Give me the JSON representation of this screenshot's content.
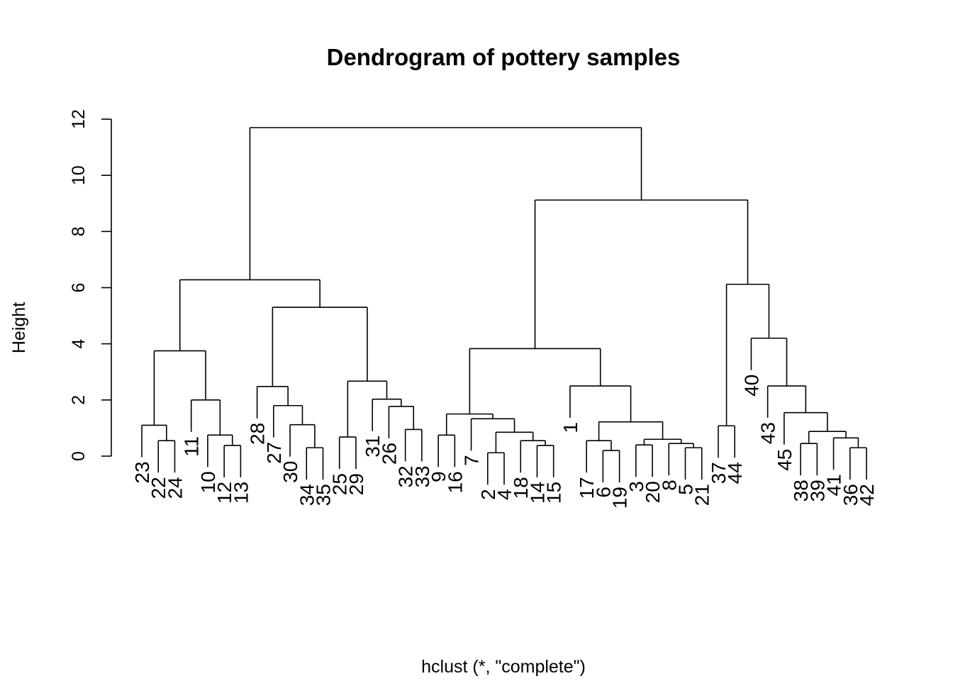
{
  "chart_data": {
    "type": "dendrogram",
    "title": "Dendrogram of pottery samples",
    "xlabel": "hclust (*, \"complete\")",
    "ylabel": "Height",
    "ylim": [
      0,
      12
    ],
    "yticks": [
      "0",
      "2",
      "4",
      "6",
      "8",
      "10",
      "12"
    ],
    "grid": false,
    "leaf_order": [
      "23",
      "22",
      "24",
      "11",
      "10",
      "12",
      "13",
      "28",
      "27",
      "30",
      "34",
      "35",
      "25",
      "29",
      "31",
      "26",
      "32",
      "33",
      "9",
      "16",
      "7",
      "2",
      "4",
      "18",
      "14",
      "15",
      "1",
      "17",
      "6",
      "19",
      "3",
      "20",
      "8",
      "5",
      "21",
      "37",
      "44",
      "40",
      "43",
      "45",
      "38",
      "39",
      "41",
      "36",
      "42"
    ],
    "merges": [
      {
        "height": 0.55,
        "left": [
          "22"
        ],
        "right": [
          "24"
        ]
      },
      {
        "height": 1.1,
        "left": [
          "23"
        ],
        "right": [
          "22",
          "24"
        ]
      },
      {
        "height": 0.38,
        "left": [
          "12"
        ],
        "right": [
          "13"
        ]
      },
      {
        "height": 0.75,
        "left": [
          "10"
        ],
        "right": [
          "12",
          "13"
        ]
      },
      {
        "height": 2.0,
        "left": [
          "11"
        ],
        "right": [
          "10",
          "12",
          "13"
        ]
      },
      {
        "height": 3.75,
        "left": [
          "23",
          "22",
          "24"
        ],
        "right": [
          "11",
          "10",
          "12",
          "13"
        ]
      },
      {
        "height": 0.3,
        "left": [
          "34"
        ],
        "right": [
          "35"
        ]
      },
      {
        "height": 1.12,
        "left": [
          "30"
        ],
        "right": [
          "34",
          "35"
        ]
      },
      {
        "height": 1.8,
        "left": [
          "27"
        ],
        "right": [
          "30",
          "34",
          "35"
        ]
      },
      {
        "height": 2.48,
        "left": [
          "28"
        ],
        "right": [
          "27",
          "30",
          "34",
          "35"
        ]
      },
      {
        "height": 0.68,
        "left": [
          "25"
        ],
        "right": [
          "29"
        ]
      },
      {
        "height": 0.95,
        "left": [
          "32"
        ],
        "right": [
          "33"
        ]
      },
      {
        "height": 1.77,
        "left": [
          "26"
        ],
        "right": [
          "32",
          "33"
        ]
      },
      {
        "height": 2.03,
        "left": [
          "31"
        ],
        "right": [
          "26",
          "32",
          "33"
        ]
      },
      {
        "height": 2.67,
        "left": [
          "25",
          "29"
        ],
        "right": [
          "31",
          "26",
          "32",
          "33"
        ]
      },
      {
        "height": 5.3,
        "left": [
          "28",
          "27",
          "30",
          "34",
          "35"
        ],
        "right": [
          "25",
          "29",
          "31",
          "26",
          "32",
          "33"
        ]
      },
      {
        "height": 6.28,
        "left": [
          "23",
          "22",
          "24",
          "11",
          "10",
          "12",
          "13"
        ],
        "right": [
          "28",
          "27",
          "30",
          "34",
          "35",
          "25",
          "29",
          "31",
          "26",
          "32",
          "33"
        ]
      },
      {
        "height": 0.75,
        "left": [
          "9"
        ],
        "right": [
          "16"
        ]
      },
      {
        "height": 0.12,
        "left": [
          "2"
        ],
        "right": [
          "4"
        ]
      },
      {
        "height": 0.38,
        "left": [
          "14"
        ],
        "right": [
          "15"
        ]
      },
      {
        "height": 0.55,
        "left": [
          "18"
        ],
        "right": [
          "14",
          "15"
        ]
      },
      {
        "height": 0.85,
        "left": [
          "2",
          "4"
        ],
        "right": [
          "18",
          "14",
          "15"
        ]
      },
      {
        "height": 1.33,
        "left": [
          "7"
        ],
        "right": [
          "2",
          "4",
          "18",
          "14",
          "15"
        ]
      },
      {
        "height": 1.5,
        "left": [
          "9",
          "16"
        ],
        "right": [
          "7",
          "2",
          "4",
          "18",
          "14",
          "15"
        ]
      },
      {
        "height": 0.2,
        "left": [
          "6"
        ],
        "right": [
          "19"
        ]
      },
      {
        "height": 0.55,
        "left": [
          "17"
        ],
        "right": [
          "6",
          "19"
        ]
      },
      {
        "height": 0.4,
        "left": [
          "3"
        ],
        "right": [
          "20"
        ]
      },
      {
        "height": 0.3,
        "left": [
          "5"
        ],
        "right": [
          "21"
        ]
      },
      {
        "height": 0.45,
        "left": [
          "8"
        ],
        "right": [
          "5",
          "21"
        ]
      },
      {
        "height": 0.6,
        "left": [
          "3",
          "20"
        ],
        "right": [
          "8",
          "5",
          "21"
        ]
      },
      {
        "height": 1.22,
        "left": [
          "17",
          "6",
          "19"
        ],
        "right": [
          "3",
          "20",
          "8",
          "5",
          "21"
        ]
      },
      {
        "height": 2.5,
        "left": [
          "1"
        ],
        "right": [
          "17",
          "6",
          "19",
          "3",
          "20",
          "8",
          "5",
          "21"
        ]
      },
      {
        "height": 3.83,
        "left": [
          "9",
          "16",
          "7",
          "2",
          "4",
          "18",
          "14",
          "15"
        ],
        "right": [
          "1",
          "17",
          "6",
          "19",
          "3",
          "20",
          "8",
          "5",
          "21"
        ]
      },
      {
        "height": 1.08,
        "left": [
          "37"
        ],
        "right": [
          "44"
        ]
      },
      {
        "height": 0.45,
        "left": [
          "38"
        ],
        "right": [
          "39"
        ]
      },
      {
        "height": 0.3,
        "left": [
          "36"
        ],
        "right": [
          "42"
        ]
      },
      {
        "height": 0.65,
        "left": [
          "41"
        ],
        "right": [
          "36",
          "42"
        ]
      },
      {
        "height": 0.88,
        "left": [
          "38",
          "39"
        ],
        "right": [
          "41",
          "36",
          "42"
        ]
      },
      {
        "height": 1.55,
        "left": [
          "45"
        ],
        "right": [
          "38",
          "39",
          "41",
          "36",
          "42"
        ]
      },
      {
        "height": 2.5,
        "left": [
          "43"
        ],
        "right": [
          "45",
          "38",
          "39",
          "41",
          "36",
          "42"
        ]
      },
      {
        "height": 4.2,
        "left": [
          "40"
        ],
        "right": [
          "43",
          "45",
          "38",
          "39",
          "41",
          "36",
          "42"
        ]
      },
      {
        "height": 6.12,
        "left": [
          "37",
          "44"
        ],
        "right": [
          "40",
          "43",
          "45",
          "38",
          "39",
          "41",
          "36",
          "42"
        ]
      },
      {
        "height": 9.12,
        "left": [
          "9",
          "16",
          "7",
          "2",
          "4",
          "18",
          "14",
          "15",
          "1",
          "17",
          "6",
          "19",
          "3",
          "20",
          "8",
          "5",
          "21"
        ],
        "right": [
          "37",
          "44",
          "40",
          "43",
          "45",
          "38",
          "39",
          "41",
          "36",
          "42"
        ]
      },
      {
        "height": 11.7,
        "left": [
          "23",
          "22",
          "24",
          "11",
          "10",
          "12",
          "13",
          "28",
          "27",
          "30",
          "34",
          "35",
          "25",
          "29",
          "31",
          "26",
          "32",
          "33"
        ],
        "right": [
          "9",
          "16",
          "7",
          "2",
          "4",
          "18",
          "14",
          "15",
          "1",
          "17",
          "6",
          "19",
          "3",
          "20",
          "8",
          "5",
          "21",
          "37",
          "44",
          "40",
          "43",
          "45",
          "38",
          "39",
          "41",
          "36",
          "42"
        ]
      }
    ]
  }
}
